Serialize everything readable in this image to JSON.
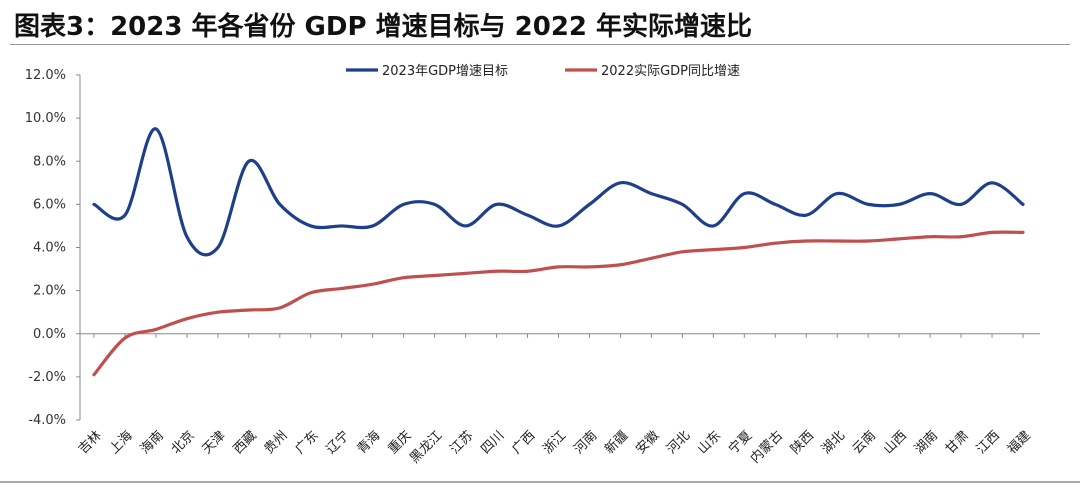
{
  "title": "图表3：2023 年各省份 GDP 增速目标与 2022 年实际增速比",
  "chart_data": {
    "type": "line",
    "title": "图表3：2023 年各省份 GDP 增速目标与 2022 年实际增速比",
    "xlabel": "",
    "ylabel": "",
    "ylim": [
      -4,
      12
    ],
    "yticks": [
      "-4.0%",
      "-2.0%",
      "0.0%",
      "2.0%",
      "4.0%",
      "6.0%",
      "8.0%",
      "10.0%",
      "12.0%"
    ],
    "grid": false,
    "legend": "top",
    "smooth": true,
    "categories": [
      "吉林",
      "上海",
      "海南",
      "北京",
      "天津",
      "西藏",
      "贵州",
      "广东",
      "辽宁",
      "青海",
      "重庆",
      "黑龙江",
      "江苏",
      "四川",
      "广西",
      "浙江",
      "河南",
      "新疆",
      "安徽",
      "河北",
      "山东",
      "宁夏",
      "内蒙古",
      "陕西",
      "湖北",
      "云南",
      "山西",
      "湖南",
      "甘肃",
      "江西",
      "福建"
    ],
    "series": [
      {
        "name": "2023年GDP增速目标",
        "color": "#1f3f8a",
        "values": [
          6.0,
          5.5,
          9.5,
          4.5,
          4.0,
          8.0,
          6.0,
          5.0,
          5.0,
          5.0,
          6.0,
          6.0,
          5.0,
          6.0,
          5.5,
          5.0,
          6.0,
          7.0,
          6.5,
          6.0,
          5.0,
          6.5,
          6.0,
          5.5,
          6.5,
          6.0,
          6.0,
          6.5,
          6.0,
          7.0,
          6.0
        ]
      },
      {
        "name": "2022实际GDP同比增速",
        "color": "#c0504d",
        "values": [
          -1.9,
          -0.2,
          0.2,
          0.7,
          1.0,
          1.1,
          1.2,
          1.9,
          2.1,
          2.3,
          2.6,
          2.7,
          2.8,
          2.9,
          2.9,
          3.1,
          3.1,
          3.2,
          3.5,
          3.8,
          3.9,
          4.0,
          4.2,
          4.3,
          4.3,
          4.3,
          4.4,
          4.5,
          4.5,
          4.7,
          4.7
        ]
      }
    ]
  }
}
